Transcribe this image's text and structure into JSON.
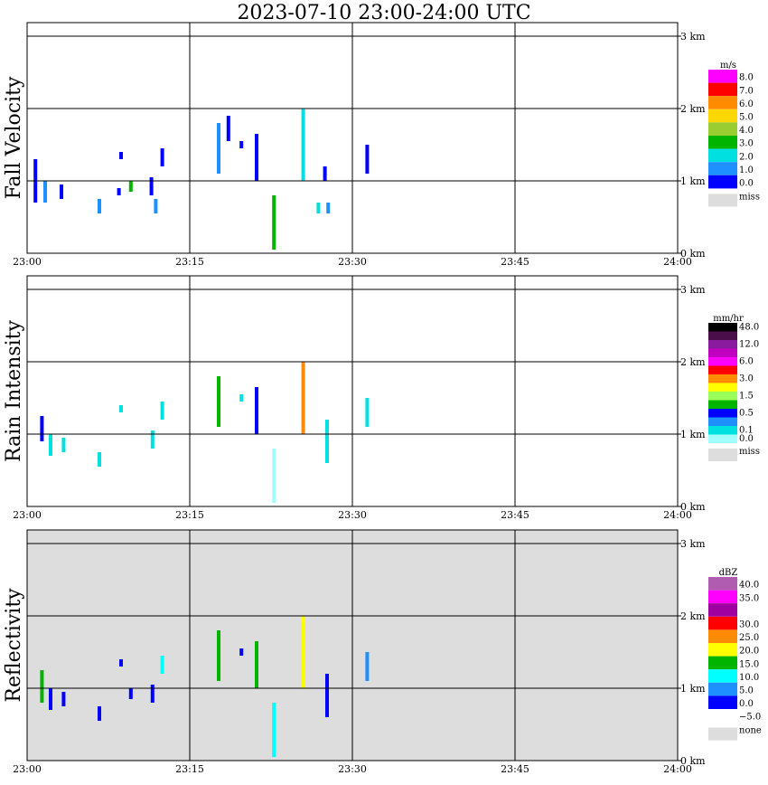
{
  "title": "2023-07-10   23:00-24:00 UTC",
  "x_ticks": [
    "23:00",
    "23:15",
    "23:30",
    "23:45",
    "24:00"
  ],
  "height_ticks": [
    "0 km",
    "1 km",
    "2 km",
    "3 km"
  ],
  "chart_data": [
    {
      "type": "heatmap",
      "ylabel": "Fall Velocity",
      "unit": "m/s",
      "x_range": [
        "23:00",
        "24:00"
      ],
      "y_range_km": [
        0,
        3.5
      ],
      "grid": true,
      "background": "#ffffff",
      "legend_position": "right",
      "legend": [
        {
          "label": "8.0",
          "color": "#ff00ff"
        },
        {
          "label": "7.0",
          "color": "#ff0000"
        },
        {
          "label": "6.0",
          "color": "#ff8c00"
        },
        {
          "label": "5.0",
          "color": "#ffd700"
        },
        {
          "label": "4.0",
          "color": "#9acd32"
        },
        {
          "label": "3.0",
          "color": "#00b400"
        },
        {
          "label": "2.0",
          "color": "#00e0e0"
        },
        {
          "label": "1.0",
          "color": "#1e90ff"
        },
        {
          "label": "0.0",
          "color": "#0000ff"
        },
        {
          "label": "miss",
          "color": "#dddddd"
        }
      ],
      "echoes": [
        {
          "t": 0.6,
          "h0": 0.7,
          "h1": 1.3,
          "color": "#0000ff"
        },
        {
          "t": 1.5,
          "h0": 0.7,
          "h1": 1.0,
          "color": "#1e90ff"
        },
        {
          "t": 3.0,
          "h0": 0.75,
          "h1": 0.95,
          "color": "#0000ff"
        },
        {
          "t": 6.5,
          "h0": 0.55,
          "h1": 0.75,
          "color": "#1e90ff"
        },
        {
          "t": 8.3,
          "h0": 0.8,
          "h1": 0.9,
          "color": "#0000ff"
        },
        {
          "t": 8.5,
          "h0": 1.3,
          "h1": 1.4,
          "color": "#0000ff"
        },
        {
          "t": 9.4,
          "h0": 0.85,
          "h1": 1.0,
          "color": "#00b400"
        },
        {
          "t": 11.3,
          "h0": 0.8,
          "h1": 1.05,
          "color": "#0000ff"
        },
        {
          "t": 11.7,
          "h0": 0.55,
          "h1": 0.75,
          "color": "#1e90ff"
        },
        {
          "t": 12.3,
          "h0": 1.2,
          "h1": 1.45,
          "color": "#0000ff"
        },
        {
          "t": 17.5,
          "h0": 1.1,
          "h1": 1.8,
          "color": "#1e90ff"
        },
        {
          "t": 18.4,
          "h0": 1.55,
          "h1": 1.9,
          "color": "#0000ff"
        },
        {
          "t": 19.6,
          "h0": 1.45,
          "h1": 1.55,
          "color": "#0000ff"
        },
        {
          "t": 21.0,
          "h0": 1.0,
          "h1": 1.65,
          "color": "#0000ff"
        },
        {
          "t": 22.6,
          "h0": 0.05,
          "h1": 0.8,
          "color": "#00b400"
        },
        {
          "t": 25.3,
          "h0": 1.0,
          "h1": 2.0,
          "color": "#00e0e0"
        },
        {
          "t": 26.7,
          "h0": 0.55,
          "h1": 0.7,
          "color": "#00e0e0"
        },
        {
          "t": 27.3,
          "h0": 1.0,
          "h1": 1.2,
          "color": "#0000ff"
        },
        {
          "t": 27.6,
          "h0": 0.55,
          "h1": 0.7,
          "color": "#1e90ff"
        },
        {
          "t": 31.2,
          "h0": 1.1,
          "h1": 1.5,
          "color": "#0000ff"
        }
      ]
    },
    {
      "type": "heatmap",
      "ylabel": "Rain Intensity",
      "unit": "mm/hr",
      "x_range": [
        "23:00",
        "24:00"
      ],
      "y_range_km": [
        0,
        3.5
      ],
      "grid": true,
      "background": "#ffffff",
      "legend_position": "right",
      "legend": [
        {
          "label": "48.0",
          "color": "#000000"
        },
        {
          "label": "",
          "color": "#4a0f4a"
        },
        {
          "label": "12.0",
          "color": "#8a1a9e"
        },
        {
          "label": "",
          "color": "#c000c0"
        },
        {
          "label": "6.0",
          "color": "#ff00ff"
        },
        {
          "label": "",
          "color": "#ff0000"
        },
        {
          "label": "3.0",
          "color": "#ff8c00"
        },
        {
          "label": "",
          "color": "#ffff00"
        },
        {
          "label": "1.5",
          "color": "#9aff5a"
        },
        {
          "label": "",
          "color": "#00b400"
        },
        {
          "label": "0.5",
          "color": "#0000ff"
        },
        {
          "label": "",
          "color": "#1e90ff"
        },
        {
          "label": "0.1",
          "color": "#00e0e0"
        },
        {
          "label": "0.0",
          "color": "#a0ffff"
        },
        {
          "label": "miss",
          "color": "#dddddd"
        }
      ],
      "echoes": [
        {
          "t": 1.2,
          "h0": 0.9,
          "h1": 1.25,
          "color": "#0000ff"
        },
        {
          "t": 2.0,
          "h0": 0.7,
          "h1": 1.0,
          "color": "#00e0e0"
        },
        {
          "t": 3.2,
          "h0": 0.75,
          "h1": 0.95,
          "color": "#00e0e0"
        },
        {
          "t": 6.5,
          "h0": 0.55,
          "h1": 0.75,
          "color": "#00e0e0"
        },
        {
          "t": 8.5,
          "h0": 1.3,
          "h1": 1.4,
          "color": "#00e0e0"
        },
        {
          "t": 11.4,
          "h0": 0.8,
          "h1": 1.05,
          "color": "#00e0e0"
        },
        {
          "t": 12.3,
          "h0": 1.2,
          "h1": 1.45,
          "color": "#00e0e0"
        },
        {
          "t": 17.5,
          "h0": 1.1,
          "h1": 1.8,
          "color": "#00b400"
        },
        {
          "t": 19.6,
          "h0": 1.45,
          "h1": 1.55,
          "color": "#00e0e0"
        },
        {
          "t": 21.0,
          "h0": 1.0,
          "h1": 1.65,
          "color": "#0000ff"
        },
        {
          "t": 22.6,
          "h0": 0.05,
          "h1": 0.8,
          "color": "#a0ffff"
        },
        {
          "t": 25.3,
          "h0": 1.0,
          "h1": 2.0,
          "color": "#ff8c00"
        },
        {
          "t": 27.5,
          "h0": 0.6,
          "h1": 1.2,
          "color": "#00e0e0"
        },
        {
          "t": 31.2,
          "h0": 1.1,
          "h1": 1.5,
          "color": "#00e0e0"
        }
      ]
    },
    {
      "type": "heatmap",
      "ylabel": "Reflectivity",
      "unit": "dBZ",
      "x_range": [
        "23:00",
        "24:00"
      ],
      "y_range_km": [
        0,
        3.5
      ],
      "grid": true,
      "background": "#dddddd",
      "legend_position": "right",
      "legend": [
        {
          "label": "40.0",
          "color": "#b05cb0"
        },
        {
          "label": "35.0",
          "color": "#ff00ff"
        },
        {
          "label": "",
          "color": "#a000a0"
        },
        {
          "label": "30.0",
          "color": "#ff0000"
        },
        {
          "label": "25.0",
          "color": "#ff8c00"
        },
        {
          "label": "20.0",
          "color": "#ffff00"
        },
        {
          "label": "15.0",
          "color": "#00b400"
        },
        {
          "label": "10.0",
          "color": "#00ffff"
        },
        {
          "label": "5.0",
          "color": "#1e90ff"
        },
        {
          "label": "0.0",
          "color": "#0000ff"
        },
        {
          "label": "−5.0",
          "color": "#ffffff"
        },
        {
          "label": "none",
          "color": "#dddddd"
        }
      ],
      "echoes": [
        {
          "t": 1.2,
          "h0": 0.8,
          "h1": 1.25,
          "color": "#00b400"
        },
        {
          "t": 2.0,
          "h0": 0.7,
          "h1": 1.0,
          "color": "#0000ff"
        },
        {
          "t": 3.2,
          "h0": 0.75,
          "h1": 0.95,
          "color": "#0000ff"
        },
        {
          "t": 6.5,
          "h0": 0.55,
          "h1": 0.75,
          "color": "#0000ff"
        },
        {
          "t": 8.5,
          "h0": 1.3,
          "h1": 1.4,
          "color": "#0000ff"
        },
        {
          "t": 9.4,
          "h0": 0.85,
          "h1": 1.0,
          "color": "#0000ff"
        },
        {
          "t": 11.4,
          "h0": 0.8,
          "h1": 1.05,
          "color": "#0000ff"
        },
        {
          "t": 12.3,
          "h0": 1.2,
          "h1": 1.45,
          "color": "#00ffff"
        },
        {
          "t": 17.5,
          "h0": 1.1,
          "h1": 1.8,
          "color": "#00b400"
        },
        {
          "t": 19.6,
          "h0": 1.45,
          "h1": 1.55,
          "color": "#0000ff"
        },
        {
          "t": 21.0,
          "h0": 1.0,
          "h1": 1.65,
          "color": "#00b400"
        },
        {
          "t": 22.6,
          "h0": 0.05,
          "h1": 0.8,
          "color": "#00ffff"
        },
        {
          "t": 25.3,
          "h0": 1.0,
          "h1": 2.0,
          "color": "#ffff00"
        },
        {
          "t": 27.5,
          "h0": 0.6,
          "h1": 1.2,
          "color": "#0000ff"
        },
        {
          "t": 31.2,
          "h0": 1.1,
          "h1": 1.5,
          "color": "#1e90ff"
        }
      ]
    }
  ]
}
